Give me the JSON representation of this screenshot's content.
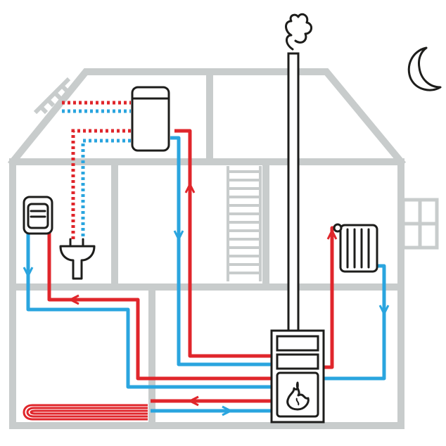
{
  "diagram": {
    "colors": {
      "wall": "#c8cccc",
      "hot": "#e0262b",
      "cold": "#2aa5df",
      "ink": "#1d1d1b"
    },
    "icons": [
      "house-outline-icon",
      "chimney-icon",
      "smoke-icon",
      "moon-icon",
      "window-icon",
      "hot-water-tank-icon",
      "water-heater-icon",
      "washbasin-icon",
      "staircase-icon",
      "radiator-icon",
      "wood-stove-boiler-icon",
      "flame-icon",
      "underfloor-heating-icon",
      "solar-panel-icon"
    ]
  }
}
